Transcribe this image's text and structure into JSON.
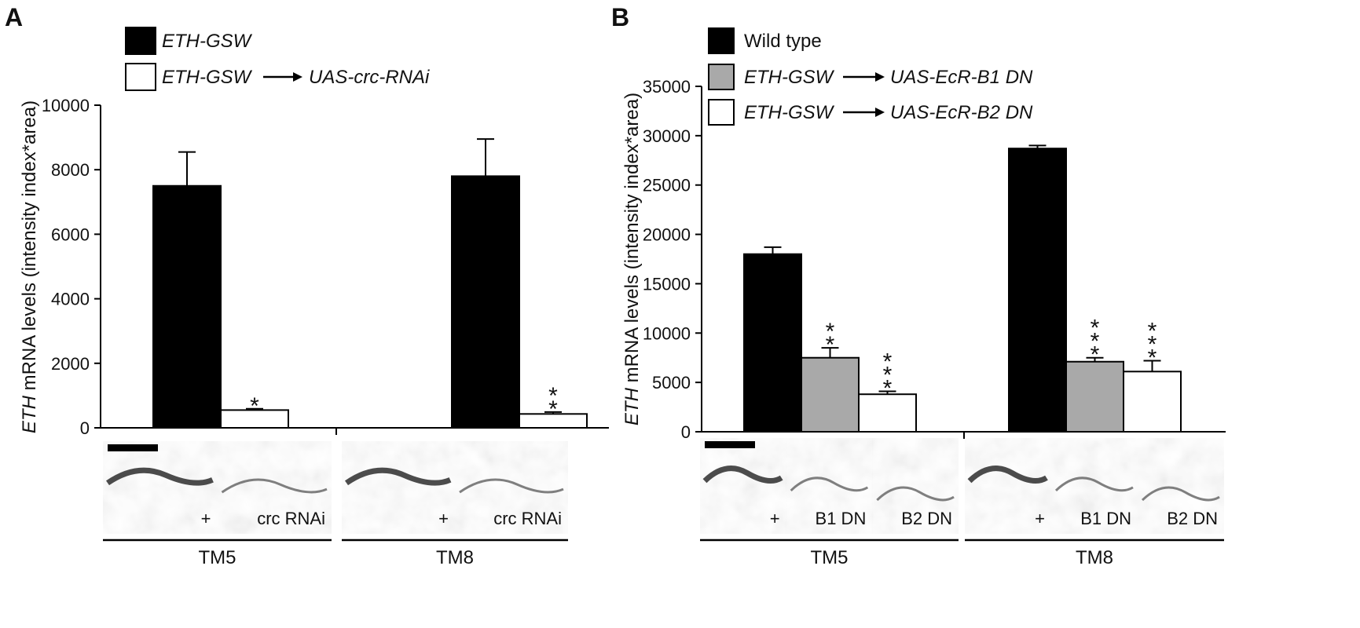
{
  "colors": {
    "black": "#000000",
    "gray": "#a9a9a9",
    "white": "#ffffff",
    "axis": "#000000"
  },
  "panel_a": {
    "letter": "A",
    "ylabel_italic": "ETH",
    "ylabel_rest": " mRNA levels (intensity index*area)",
    "legend": [
      {
        "label": "ETH-GSW",
        "fill": "black"
      },
      {
        "label": "ETH-GSW",
        "arrow_target": "UAS-crc-RNAi",
        "fill": "white"
      }
    ],
    "groups": [
      "TM5",
      "TM8"
    ],
    "image_labels": [
      [
        "+",
        "crc RNAi"
      ],
      [
        "+",
        "crc RNAi"
      ]
    ]
  },
  "panel_b": {
    "letter": "B",
    "ylabel_italic": "ETH",
    "ylabel_rest": " mRNA levels (intensity index*area)",
    "legend": [
      {
        "label": "Wild type",
        "fill": "black"
      },
      {
        "label": "ETH-GSW",
        "arrow_target": "UAS-EcR-B1 DN",
        "fill": "gray"
      },
      {
        "label": "ETH-GSW",
        "arrow_target": "UAS-EcR-B2 DN",
        "fill": "white"
      }
    ],
    "groups": [
      "TM5",
      "TM8"
    ],
    "image_labels": [
      [
        "+",
        "B1 DN",
        "B2 DN"
      ],
      [
        "+",
        "B1 DN",
        "B2 DN"
      ]
    ]
  },
  "chart_data": [
    {
      "type": "bar",
      "panel": "A",
      "categories": [
        "TM5",
        "TM8"
      ],
      "series": [
        {
          "name": "ETH-GSW",
          "color": "black",
          "values": [
            7500,
            7800
          ],
          "errors": [
            1050,
            1150
          ],
          "significance": [
            "",
            ""
          ]
        },
        {
          "name": "ETH-GSW → UAS-crc-RNAi",
          "color": "white",
          "values": [
            550,
            430
          ],
          "errors": [
            40,
            60
          ],
          "significance": [
            "*",
            "**"
          ]
        }
      ],
      "ylabel": "ETH mRNA levels (intensity index*area)",
      "ylim": [
        0,
        10000
      ],
      "yticks": [
        0,
        2000,
        4000,
        6000,
        8000,
        10000
      ],
      "legend": "top-left"
    },
    {
      "type": "bar",
      "panel": "B",
      "categories": [
        "TM5",
        "TM8"
      ],
      "series": [
        {
          "name": "Wild type",
          "color": "black",
          "values": [
            18000,
            28700
          ],
          "errors": [
            700,
            300
          ],
          "significance": [
            "",
            ""
          ]
        },
        {
          "name": "ETH-GSW → UAS-EcR-B1 DN",
          "color": "gray",
          "values": [
            7500,
            7100
          ],
          "errors": [
            1000,
            400
          ],
          "significance": [
            "**",
            "***"
          ]
        },
        {
          "name": "ETH-GSW → UAS-EcR-B2 DN",
          "color": "white",
          "values": [
            3800,
            6100
          ],
          "errors": [
            300,
            1100
          ],
          "significance": [
            "***",
            "***"
          ]
        }
      ],
      "ylabel": "ETH mRNA levels (intensity index*area)",
      "ylim": [
        0,
        35000
      ],
      "yticks": [
        0,
        5000,
        10000,
        15000,
        20000,
        25000,
        30000,
        35000
      ],
      "legend": "top-left"
    }
  ]
}
